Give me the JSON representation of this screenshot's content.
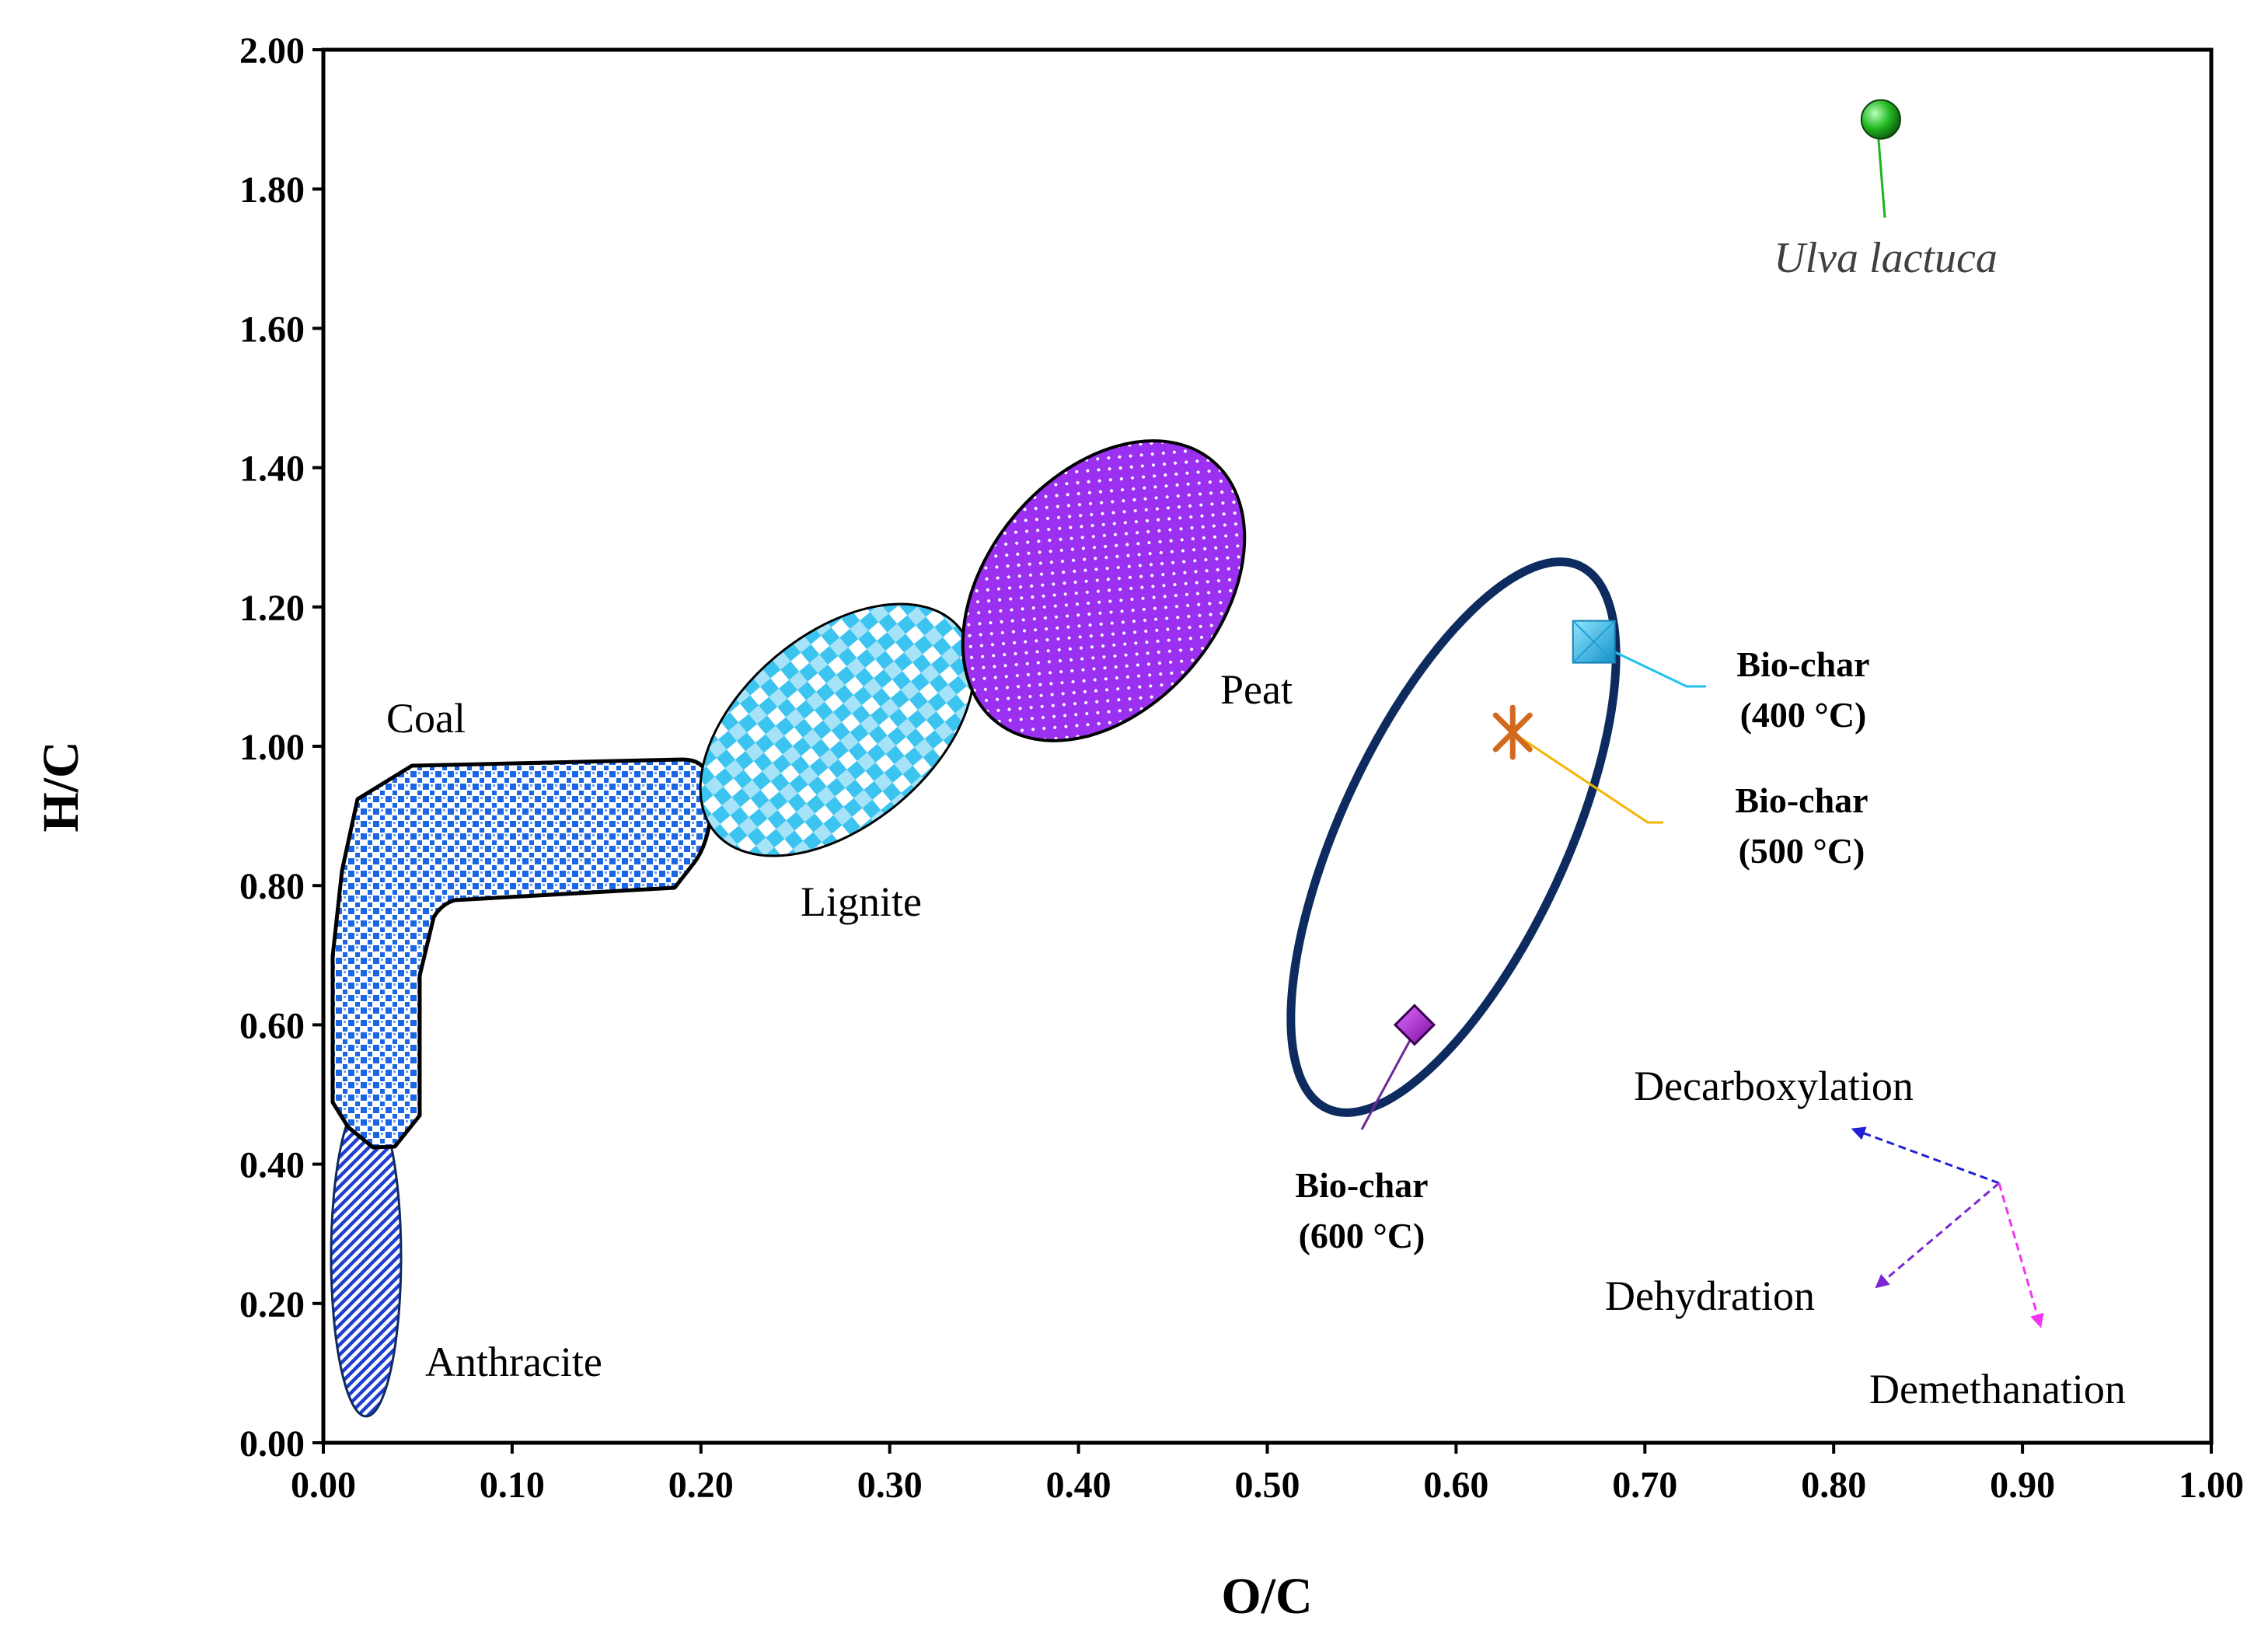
{
  "chart_data": {
    "type": "scatter",
    "title": "",
    "xlabel": "O/C",
    "ylabel": "H/C",
    "xlim": [
      0,
      1
    ],
    "ylim": [
      0,
      2
    ],
    "x_ticks": [
      "0.00",
      "0.10",
      "0.20",
      "0.30",
      "0.40",
      "0.50",
      "0.60",
      "0.70",
      "0.80",
      "0.90",
      "1.00"
    ],
    "y_ticks": [
      "0.00",
      "0.20",
      "0.40",
      "0.60",
      "0.80",
      "1.00",
      "1.20",
      "1.40",
      "1.60",
      "1.80",
      "2.00"
    ],
    "grid": false,
    "regions": [
      {
        "name": "Anthracite",
        "label": "Anthracite",
        "color": "#1f3fd0"
      },
      {
        "name": "Coal",
        "label": "Coal",
        "color": "#1a66e6"
      },
      {
        "name": "Lignite",
        "label": "Lignite",
        "color": "#3cc4f0"
      },
      {
        "name": "Peat",
        "label": "Peat",
        "color": "#9b30f0"
      }
    ],
    "points": [
      {
        "name": "Ulva lactuca",
        "label": "Ulva lactuca",
        "x": 0.825,
        "y": 1.9,
        "marker": "circle",
        "color": "#1db31d",
        "leader_color": "#1db31d"
      },
      {
        "name": "Bio-char 400",
        "label_line1": "Bio-char",
        "label_line2": "(400 °C)",
        "x": 0.673,
        "y": 1.15,
        "marker": "square",
        "color": "#2bb8e8",
        "leader_color": "#22c1ee"
      },
      {
        "name": "Bio-char 500",
        "label_line1": "Bio-char",
        "label_line2": "(500 °C)",
        "x": 0.63,
        "y": 1.02,
        "marker": "star",
        "color": "#d2691e",
        "leader_color": "#f5b400"
      },
      {
        "name": "Bio-char 600",
        "label_line1": "Bio-char",
        "label_line2": "(600 °C)",
        "x": 0.578,
        "y": 0.6,
        "marker": "diamond",
        "color": "#a020c0",
        "leader_color": "#6a2a9a"
      }
    ],
    "biochar_ellipse": {
      "color": "#0d2b5e"
    },
    "pathways": [
      {
        "name": "Decarboxylation",
        "label": "Decarboxylation",
        "color": "#1f1fd6"
      },
      {
        "name": "Dehydration",
        "label": "Dehydration",
        "color": "#7a28d0"
      },
      {
        "name": "Demethanation",
        "label": "Demethanation",
        "color": "#f233f2"
      }
    ]
  }
}
